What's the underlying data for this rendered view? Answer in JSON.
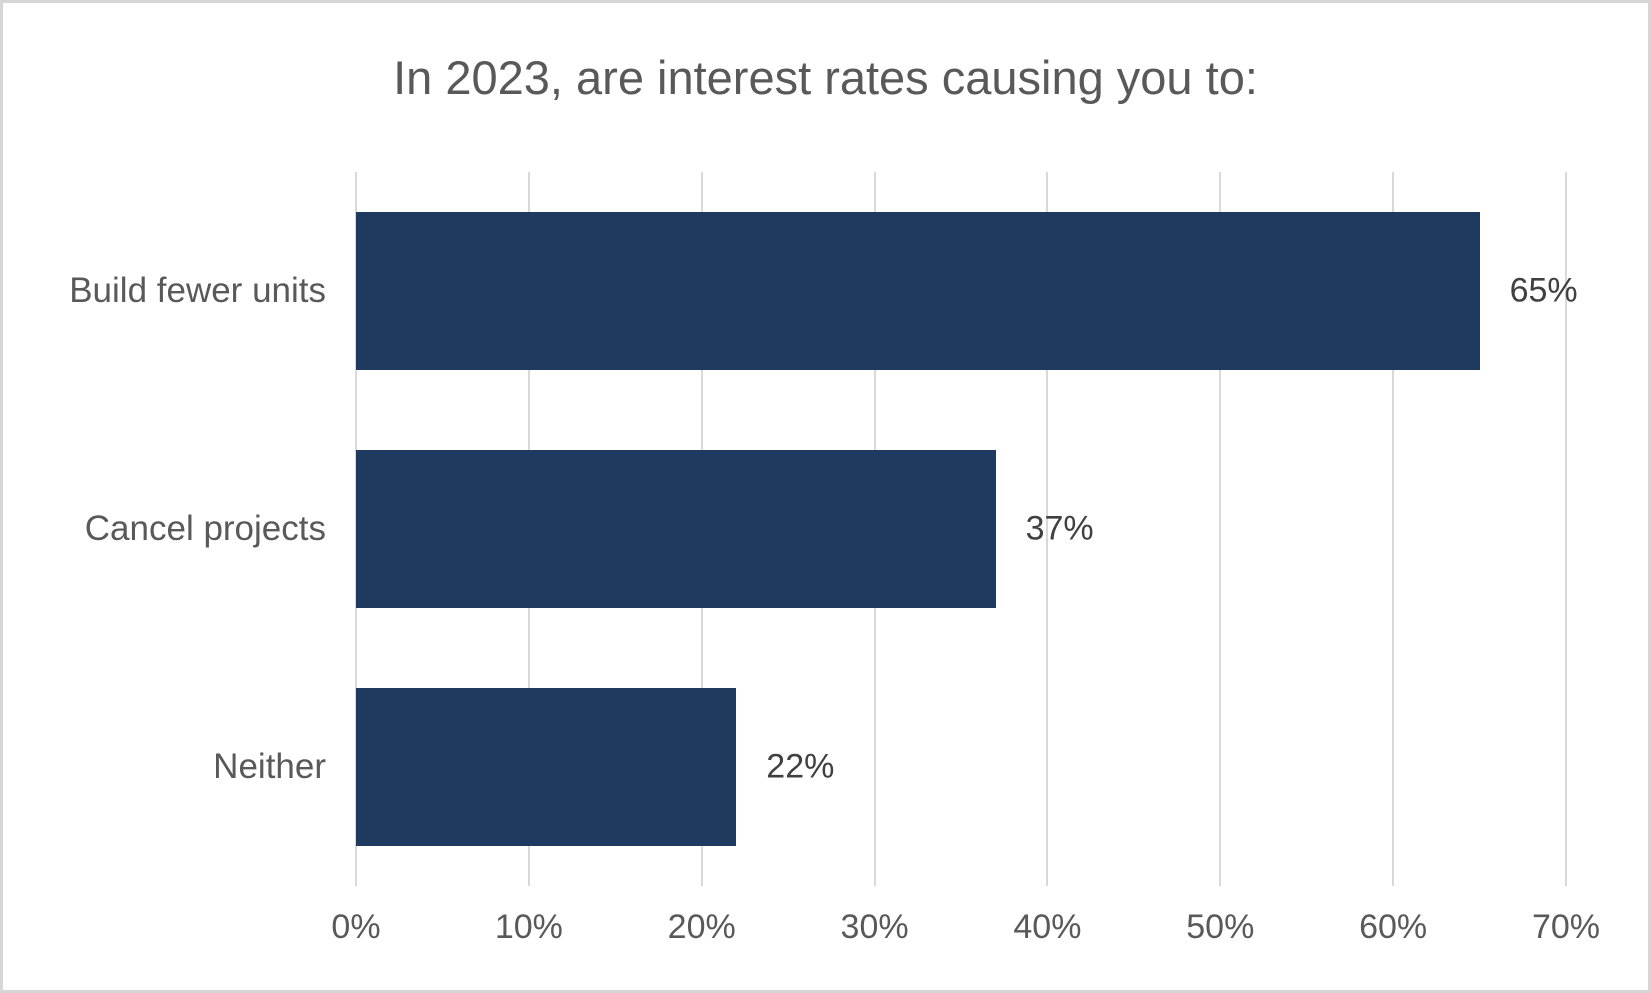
{
  "title": "In 2023, are interest rates causing you to:",
  "colors": {
    "bar": "#1f3a5f",
    "gridline": "#d9d9d9",
    "frame_border": "#d6d6d6",
    "title_text": "#595959",
    "axis_text": "#595959",
    "value_text": "#404040",
    "background": "#ffffff"
  },
  "chart_data": {
    "type": "bar",
    "orientation": "horizontal",
    "title": "In 2023, are interest rates causing you to:",
    "categories": [
      "Build fewer units",
      "Cancel projects",
      "Neither"
    ],
    "values": [
      65,
      37,
      22
    ],
    "value_labels": [
      "65%",
      "37%",
      "22%"
    ],
    "xlabel": "",
    "ylabel": "",
    "xlim": [
      0,
      70
    ],
    "x_tick_step": 10,
    "x_tick_labels": [
      "0%",
      "10%",
      "20%",
      "30%",
      "40%",
      "50%",
      "60%",
      "70%"
    ],
    "grid": "vertical-only",
    "legend": "none",
    "data_labels": "outside-end"
  }
}
